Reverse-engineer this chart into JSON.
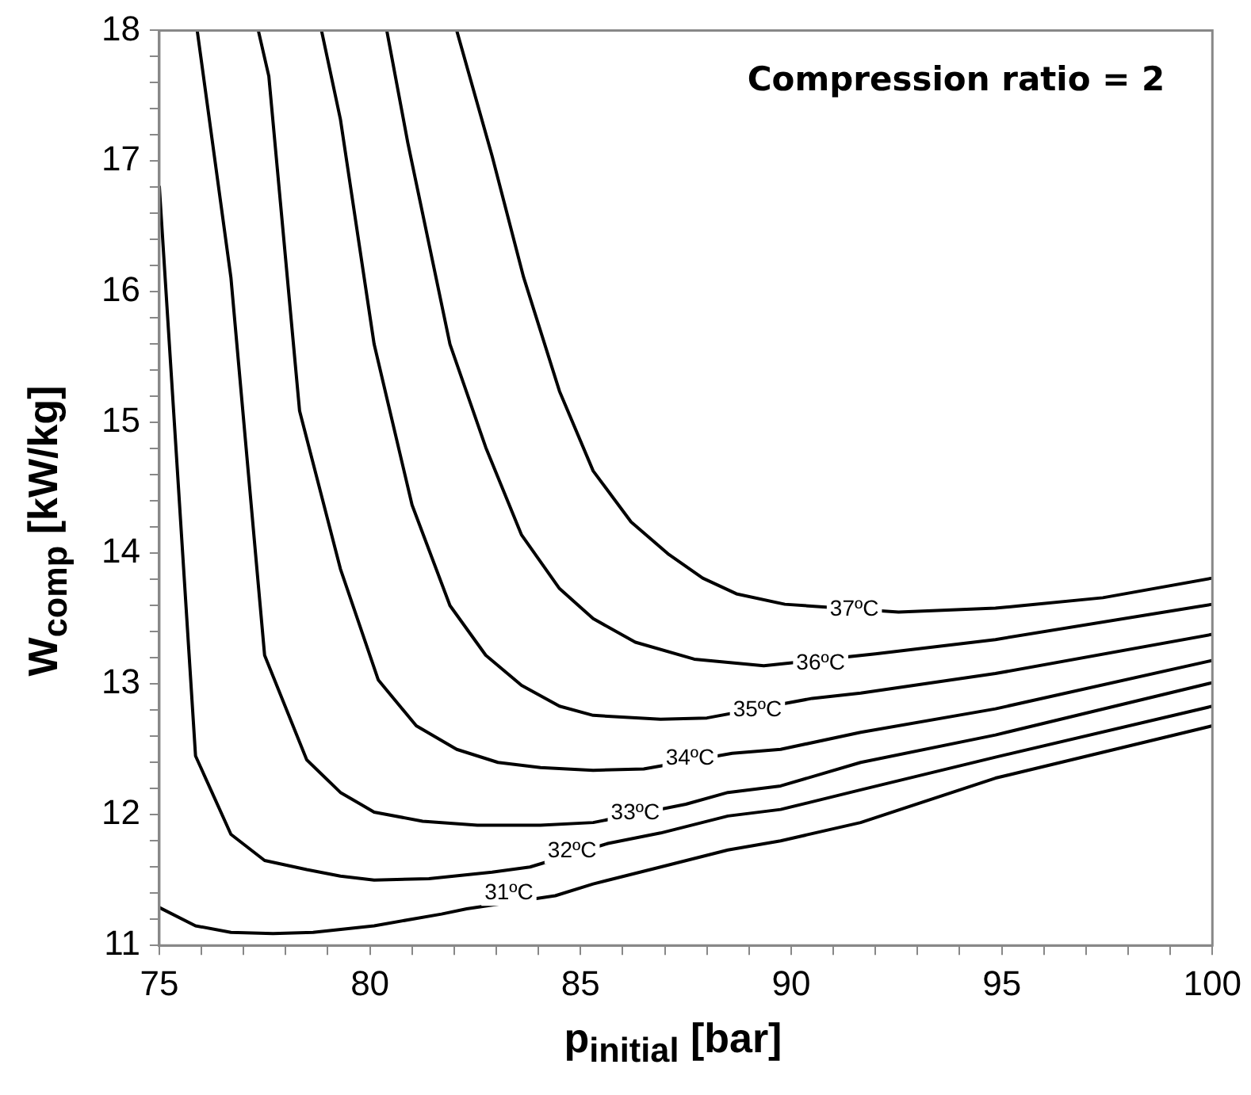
{
  "chart_data": {
    "type": "line",
    "title": "Compression ratio = 2",
    "xlabel": "p$_{initial}$ [bar]",
    "ylabel": "W$_{comp}$ [kW/kg]",
    "xlim": [
      75,
      100
    ],
    "ylim": [
      11,
      18
    ],
    "xticks": [
      75,
      {
        "value": 76,
        "label": null
      },
      {
        "value": 77,
        "label": null
      },
      {
        "value": 78,
        "label": null
      },
      {
        "value": 79,
        "label": null
      },
      80,
      {
        "value": 81,
        "label": null
      },
      {
        "value": 82,
        "label": null
      },
      {
        "value": 83,
        "label": null
      },
      {
        "value": 84,
        "label": null
      },
      85,
      {
        "value": 86,
        "label": null
      },
      {
        "value": 87,
        "label": null
      },
      {
        "value": 88,
        "label": null
      },
      {
        "value": 89,
        "label": null
      },
      90,
      {
        "value": 91,
        "label": null
      },
      {
        "value": 92,
        "label": null
      },
      {
        "value": 93,
        "label": null
      },
      {
        "value": 94,
        "label": null
      },
      95,
      {
        "value": 96,
        "label": null
      },
      {
        "value": 97,
        "label": null
      },
      {
        "value": 98,
        "label": null
      },
      {
        "value": 99,
        "label": null
      },
      100
    ],
    "yticks": [
      11,
      {
        "value": 11.2,
        "label": null
      },
      {
        "value": 11.4,
        "label": null
      },
      {
        "value": 11.6,
        "label": null
      },
      {
        "value": 11.8,
        "label": null
      },
      12,
      {
        "value": 12.2,
        "label": null
      },
      {
        "value": 12.4,
        "label": null
      },
      {
        "value": 12.6,
        "label": null
      },
      {
        "value": 12.8,
        "label": null
      },
      13,
      {
        "value": 13.2,
        "label": null
      },
      {
        "value": 13.4,
        "label": null
      },
      {
        "value": 13.6,
        "label": null
      },
      {
        "value": 13.8,
        "label": null
      },
      14,
      {
        "value": 14.2,
        "label": null
      },
      {
        "value": 14.4,
        "label": null
      },
      {
        "value": 14.6,
        "label": null
      },
      {
        "value": 14.8,
        "label": null
      },
      15,
      {
        "value": 15.2,
        "label": null
      },
      {
        "value": 15.4,
        "label": null
      },
      {
        "value": 15.6,
        "label": null
      },
      {
        "value": 15.8,
        "label": null
      },
      16,
      {
        "value": 16.2,
        "label": null
      },
      {
        "value": 16.4,
        "label": null
      },
      {
        "value": 16.6,
        "label": null
      },
      {
        "value": 16.8,
        "label": null
      },
      17,
      {
        "value": 17.2,
        "label": null
      },
      {
        "value": 17.4,
        "label": null
      },
      {
        "value": 17.6,
        "label": null
      },
      {
        "value": 17.8,
        "label": null
      },
      18
    ],
    "grid": false,
    "legend": false,
    "marker": "none",
    "line_style": "solid",
    "series": [
      {
        "color": "#000000",
        "x": [
          75,
          75.86,
          76.7,
          77.7,
          78.65,
          80.1,
          81.7,
          82.3,
          84.4,
          85.3,
          86.9,
          88.5,
          89.75,
          91.65,
          94.85,
          100
        ],
        "values": [
          11.29,
          11.15,
          11.1,
          11.09,
          11.1,
          11.15,
          11.24,
          11.28,
          11.38,
          11.47,
          11.6,
          11.73,
          11.8,
          11.94,
          12.28,
          12.68
        ]
      },
      {
        "color": "#000000",
        "x": [
          75,
          75.86,
          76.7,
          77.5,
          78.5,
          79.3,
          80.1,
          81.4,
          82.9,
          83.8,
          85.65,
          86.9,
          88.5,
          89.75,
          91.65,
          94.85,
          100
        ],
        "values": [
          16.81,
          12.45,
          11.85,
          11.65,
          11.58,
          11.53,
          11.5,
          11.51,
          11.56,
          11.6,
          11.78,
          11.86,
          11.99,
          12.04,
          12.19,
          12.44,
          12.83
        ]
      },
      {
        "color": "#000000",
        "x": [
          75.9,
          76.7,
          77.5,
          78.5,
          79.3,
          80.1,
          81.25,
          82.55,
          84.05,
          85.3,
          87.5,
          88.5,
          89.75,
          91.65,
          94.85,
          100
        ],
        "values": [
          18,
          16.11,
          13.22,
          12.42,
          12.17,
          12.02,
          11.95,
          11.92,
          11.92,
          11.94,
          12.08,
          12.17,
          12.22,
          12.4,
          12.61,
          13.01
        ]
      },
      {
        "color": "#000000",
        "x": [
          77.35,
          77.6,
          78.33,
          79.3,
          80.2,
          81.1,
          82.06,
          83.04,
          84.05,
          85.3,
          86.5,
          88.6,
          89.75,
          91.65,
          94.85,
          100
        ],
        "values": [
          18,
          17.65,
          15.09,
          13.88,
          13.03,
          12.68,
          12.5,
          12.4,
          12.36,
          12.34,
          12.35,
          12.47,
          12.5,
          12.63,
          12.81,
          13.18
        ]
      },
      {
        "color": "#000000",
        "x": [
          78.85,
          79.3,
          80.1,
          81,
          81.9,
          82.75,
          83.6,
          84.5,
          85.3,
          86.9,
          88,
          90.5,
          91.65,
          94.85,
          100
        ],
        "values": [
          18,
          17.32,
          15.6,
          14.37,
          13.6,
          13.22,
          12.99,
          12.83,
          12.76,
          12.73,
          12.74,
          12.89,
          12.93,
          13.08,
          13.38
        ]
      },
      {
        "color": "#000000",
        "x": [
          80.4,
          80.9,
          81.9,
          82.75,
          83.6,
          84.5,
          85.3,
          86.3,
          87.7,
          89.35,
          92,
          94.85,
          100
        ],
        "values": [
          18,
          17.14,
          15.6,
          14.81,
          14.14,
          13.73,
          13.5,
          13.32,
          13.19,
          13.14,
          13.23,
          13.34,
          13.61
        ]
      },
      {
        "color": "#000000",
        "x": [
          82.06,
          82.9,
          83.65,
          84.5,
          85.3,
          86.2,
          87.1,
          87.9,
          88.7,
          89.85,
          92.55,
          94.85,
          97.4,
          100
        ],
        "values": [
          18,
          17.04,
          16.11,
          15.24,
          14.63,
          14.24,
          13.99,
          13.81,
          13.69,
          13.61,
          13.55,
          13.58,
          13.66,
          13.81
        ]
      }
    ],
    "annotations": [
      {
        "text": "37ºC",
        "x": 91.5,
        "y": 13.57
      },
      {
        "text": "36ºC",
        "x": 90.7,
        "y": 13.16
      },
      {
        "text": "35ºC",
        "x": 89.2,
        "y": 12.8
      },
      {
        "text": "34ºC",
        "x": 87.6,
        "y": 12.43
      },
      {
        "text": "33ºC",
        "x": 86.3,
        "y": 12.01
      },
      {
        "text": "32ºC",
        "x": 84.8,
        "y": 11.72
      },
      {
        "text": "31ºC",
        "x": 83.3,
        "y": 11.4
      }
    ]
  }
}
